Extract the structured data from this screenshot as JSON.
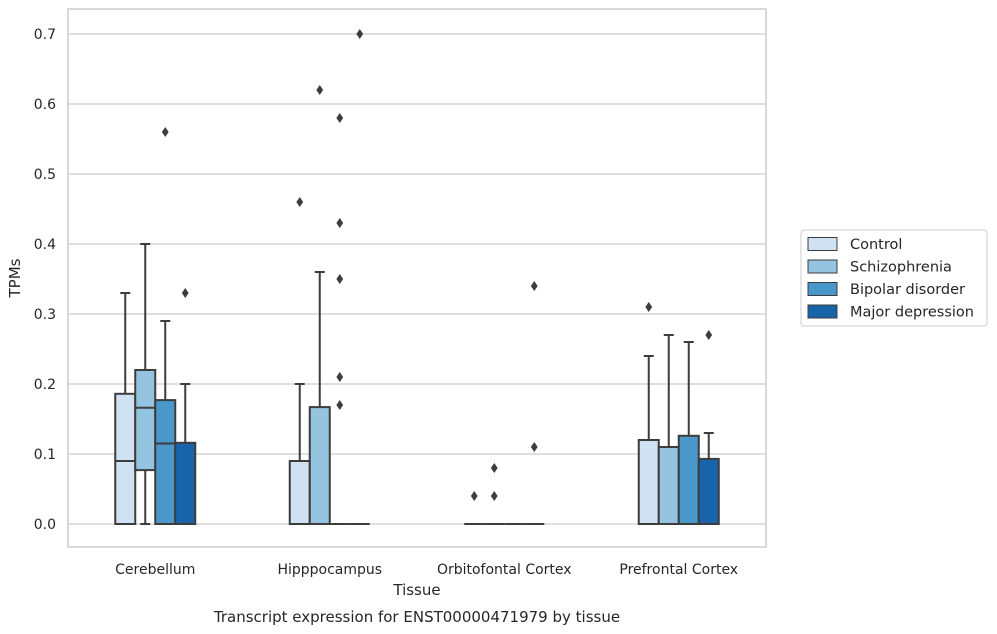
{
  "caption": "Transcript expression for ENST00000471979 by tissue",
  "chart_data": {
    "type": "box",
    "xlabel": "Tissue",
    "ylabel": "TPMs",
    "ylim": [
      -0.035,
      0.735
    ],
    "yticks": [
      "0.0",
      "0.1",
      "0.2",
      "0.3",
      "0.4",
      "0.5",
      "0.6",
      "0.7"
    ],
    "grid": true,
    "legend_position": "right",
    "categories": [
      "Cerebellum",
      "Hipppocampus",
      "Orbitofontal Cortex",
      "Prefrontal Cortex"
    ],
    "series": [
      {
        "name": "Control",
        "color": "#d0e1f2",
        "boxes": [
          {
            "min": 0.0,
            "q1": 0.0,
            "median": 0.09,
            "q3": 0.186,
            "max": 0.33,
            "outliers": []
          },
          {
            "min": 0.0,
            "q1": 0.0,
            "median": 0.0,
            "q3": 0.09,
            "max": 0.2,
            "outliers": [
              0.46
            ]
          },
          {
            "min": 0.0,
            "q1": 0.0,
            "median": 0.0,
            "q3": 0.0,
            "max": 0.0,
            "outliers": [
              0.04
            ]
          },
          {
            "min": 0.0,
            "q1": 0.0,
            "median": 0.0,
            "q3": 0.12,
            "max": 0.24,
            "outliers": [
              0.31
            ]
          }
        ]
      },
      {
        "name": "Schizophrenia",
        "color": "#94c4df",
        "boxes": [
          {
            "min": 0.0,
            "q1": 0.077,
            "median": 0.166,
            "q3": 0.22,
            "max": 0.4,
            "outliers": []
          },
          {
            "min": 0.0,
            "q1": 0.0,
            "median": 0.0,
            "q3": 0.167,
            "max": 0.36,
            "outliers": [
              0.62
            ]
          },
          {
            "min": 0.0,
            "q1": 0.0,
            "median": 0.0,
            "q3": 0.0,
            "max": 0.0,
            "outliers": [
              0.08,
              0.04
            ]
          },
          {
            "min": 0.0,
            "q1": 0.0,
            "median": 0.0,
            "q3": 0.11,
            "max": 0.27,
            "outliers": []
          }
        ]
      },
      {
        "name": "Bipolar disorder",
        "color": "#4a98c9",
        "boxes": [
          {
            "min": 0.0,
            "q1": 0.0,
            "median": 0.115,
            "q3": 0.177,
            "max": 0.29,
            "outliers": [
              0.56
            ]
          },
          {
            "min": 0.0,
            "q1": 0.0,
            "median": 0.0,
            "q3": 0.0,
            "max": 0.0,
            "outliers": [
              0.58,
              0.43,
              0.35,
              0.21,
              0.17
            ]
          },
          {
            "min": 0.0,
            "q1": 0.0,
            "median": 0.0,
            "q3": 0.0,
            "max": 0.0,
            "outliers": []
          },
          {
            "min": 0.0,
            "q1": 0.0,
            "median": 0.0,
            "q3": 0.126,
            "max": 0.26,
            "outliers": []
          }
        ]
      },
      {
        "name": "Major depression",
        "color": "#1764ab",
        "boxes": [
          {
            "min": 0.0,
            "q1": 0.0,
            "median": 0.0,
            "q3": 0.116,
            "max": 0.2,
            "outliers": [
              0.33
            ]
          },
          {
            "min": 0.0,
            "q1": 0.0,
            "median": 0.0,
            "q3": 0.0,
            "max": 0.0,
            "outliers": [
              0.7
            ]
          },
          {
            "min": 0.0,
            "q1": 0.0,
            "median": 0.0,
            "q3": 0.0,
            "max": 0.0,
            "outliers": [
              0.34,
              0.11
            ]
          },
          {
            "min": 0.0,
            "q1": 0.0,
            "median": 0.0,
            "q3": 0.093,
            "max": 0.13,
            "outliers": [
              0.27
            ]
          }
        ]
      }
    ]
  }
}
